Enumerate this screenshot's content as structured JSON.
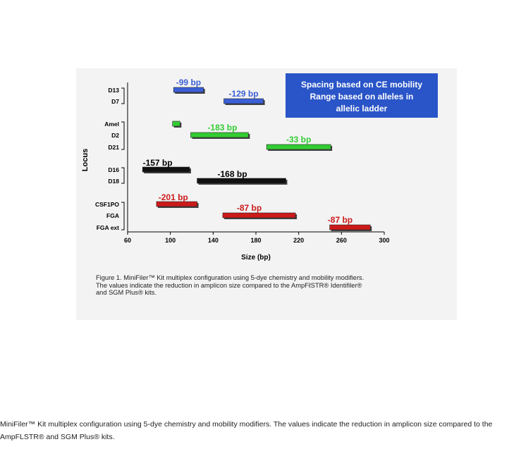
{
  "chart_data": {
    "type": "range-bar",
    "xlabel": "Size (bp)",
    "ylabel": "Locus",
    "xlim": [
      60,
      300
    ],
    "xticks": [
      60,
      100,
      140,
      180,
      220,
      260,
      300
    ],
    "colors": {
      "blue": "#3b5fd6",
      "green": "#33cc33",
      "black": "#111111",
      "red": "#cc1a1a"
    },
    "loci": [
      {
        "name": "D13",
        "dye": "blue",
        "start": 103,
        "end": 131,
        "reduction": "-99 bp"
      },
      {
        "name": "D7",
        "dye": "blue",
        "start": 150,
        "end": 187,
        "reduction": "-129 bp"
      },
      {
        "name": "Amel",
        "dye": "green",
        "start": 102,
        "end": 109,
        "reduction": ""
      },
      {
        "name": "D2",
        "dye": "green",
        "start": 119,
        "end": 173,
        "reduction": "-183 bp"
      },
      {
        "name": "D21",
        "dye": "green",
        "start": 190,
        "end": 250,
        "reduction": "-33 bp"
      },
      {
        "name": "D16",
        "dye": "black",
        "start": 74,
        "end": 118,
        "reduction": "-157 bp"
      },
      {
        "name": "D18",
        "dye": "black",
        "start": 125,
        "end": 208,
        "reduction": "-168 bp"
      },
      {
        "name": "CSF1PO",
        "dye": "red",
        "start": 87,
        "end": 125,
        "reduction": "-201 bp"
      },
      {
        "name": "FGA",
        "dye": "red",
        "start": 149,
        "end": 217,
        "reduction": "-87 bp"
      },
      {
        "name": "FGA ext",
        "dye": "red",
        "start": 249,
        "end": 287,
        "reduction": "-87 bp"
      }
    ],
    "legend_box": {
      "lines": [
        "Spacing based on CE mobility",
        "Range based on alleles in",
        "allelic ladder"
      ],
      "color": "#2a55c8"
    }
  },
  "figure_caption": [
    "Figure 1. MiniFiler™ Kit multiplex configuration using 5-dye chemistry and mobility modifiers.",
    "The values indicate the reduction in amplicon size compared to the AmpFℓSTR® Identifiler®",
    "and SGM Plus® kits."
  ],
  "page_caption": "MiniFiler™ Kit multiplex configuration using 5-dye chemistry and mobility modifiers. The values indicate the reduction in amplicon size compared to the AmpFLSTR® and SGM Plus® kits."
}
